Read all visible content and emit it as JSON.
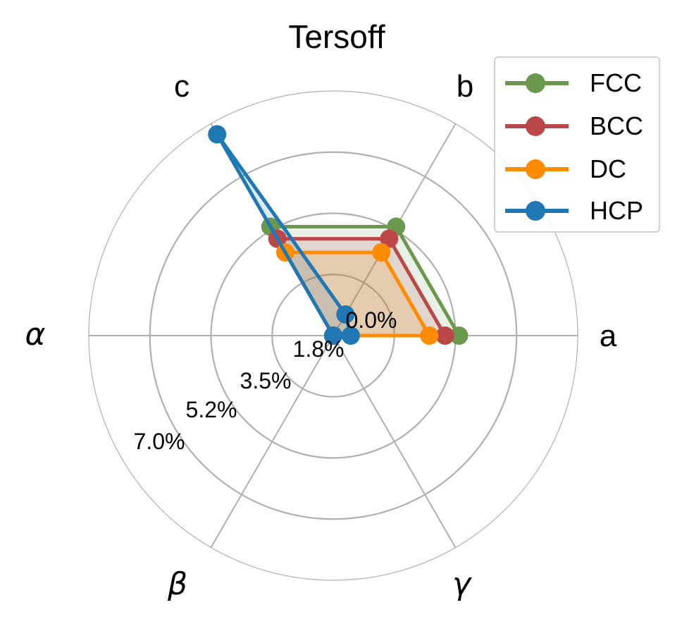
{
  "chart_data": {
    "type": "radar",
    "title": "Tersoff",
    "axes": [
      "a",
      "b",
      "c",
      "α",
      "β",
      "γ"
    ],
    "axis_angles_deg": [
      0,
      60,
      120,
      180,
      240,
      300
    ],
    "radial_ticks": [
      0.0,
      1.75,
      3.5,
      5.25,
      7.0
    ],
    "radial_tick_labels": [
      "0.0%",
      "1.8%",
      "3.5%",
      "5.2%",
      "7.0%"
    ],
    "rlim": [
      0,
      7.0
    ],
    "unit": "%",
    "grid": true,
    "legend_position": "upper right",
    "series": [
      {
        "name": "FCC",
        "color": "#6a994e",
        "values": [
          3.6,
          3.6,
          3.6,
          0.0,
          0.0,
          0.0
        ]
      },
      {
        "name": "BCC",
        "color": "#bc4749",
        "values": [
          3.2,
          3.2,
          3.2,
          0.0,
          0.0,
          0.0
        ]
      },
      {
        "name": "DC",
        "color": "#ff8c00",
        "values": [
          2.75,
          2.75,
          2.75,
          0.0,
          0.0,
          0.0
        ]
      },
      {
        "name": "HCP",
        "color": "#1f77b4",
        "values": [
          0.5,
          0.7,
          6.65,
          0.0,
          0.0,
          0.0
        ]
      }
    ]
  },
  "legend": {
    "items": [
      {
        "label": "FCC",
        "color": "#6a994e"
      },
      {
        "label": "BCC",
        "color": "#bc4749"
      },
      {
        "label": "DC",
        "color": "#ff8c00"
      },
      {
        "label": "HCP",
        "color": "#1f77b4"
      }
    ]
  }
}
